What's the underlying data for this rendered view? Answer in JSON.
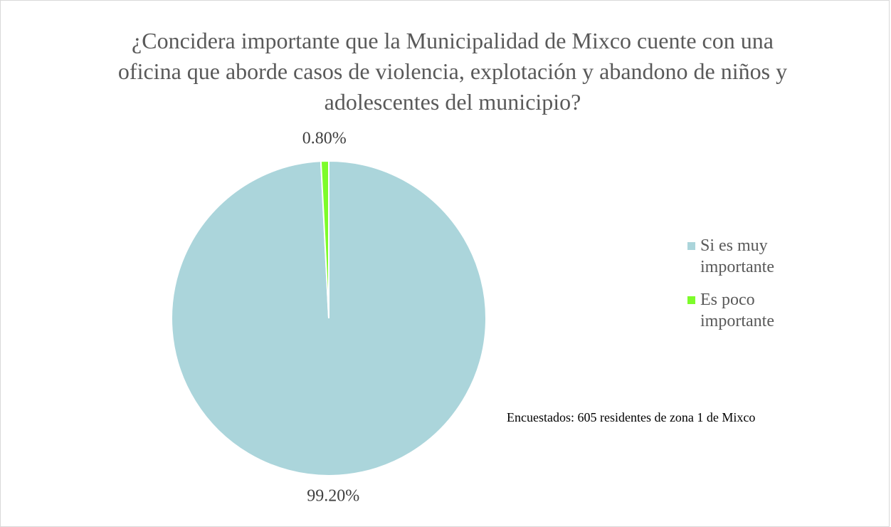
{
  "chart_data": {
    "type": "pie",
    "title": "¿Concidera importante que la Municipalidad de Mixco cuente con una oficina que aborde casos de violencia, explotación y abandono de niños y adolescentes del municipio?",
    "categories": [
      "Si es muy importante",
      "Es poco importante"
    ],
    "values": [
      99.2,
      0.8
    ],
    "value_labels": [
      "99.20%",
      "0.80%"
    ],
    "colors": [
      "#abd5db",
      "#7dfc2a"
    ],
    "legend": "right",
    "annotation": "Encuestados: 605 residentes de zona 1 de Mixco"
  }
}
